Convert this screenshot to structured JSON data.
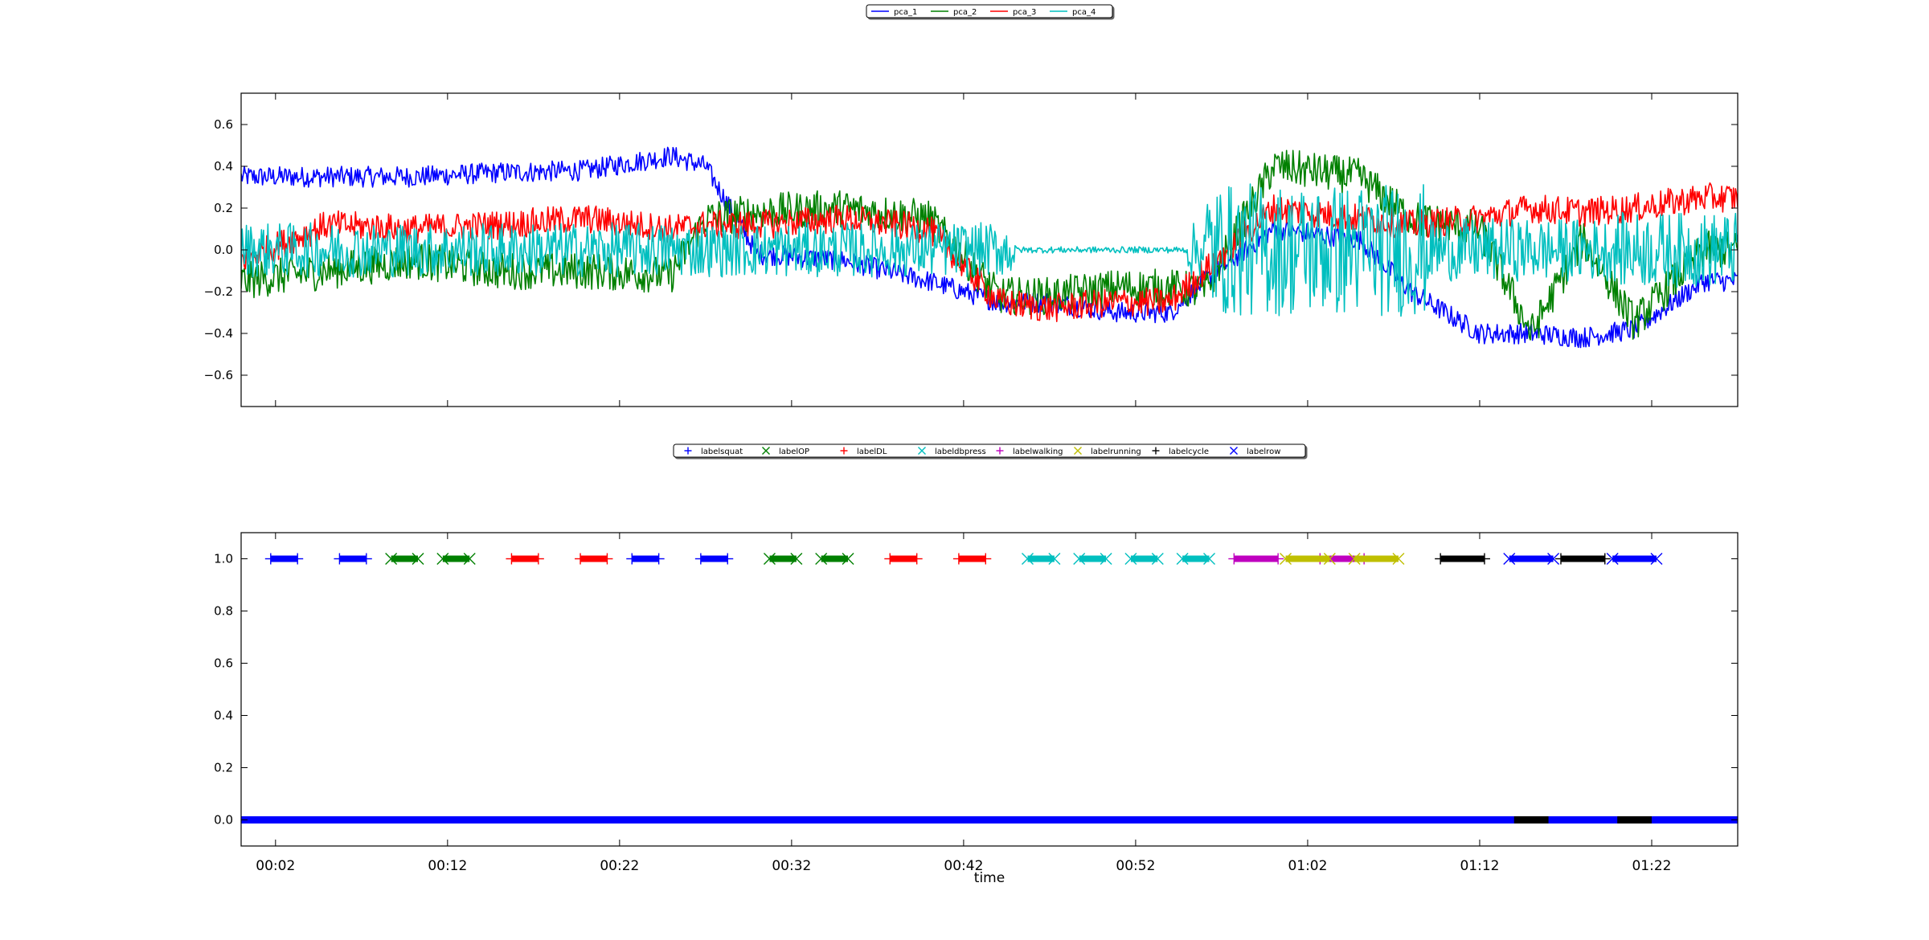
{
  "chart_data": [
    {
      "type": "line",
      "title": "",
      "xlabel": "",
      "ylabel": "",
      "xlim": [
        "00:00",
        "01:27"
      ],
      "ylim": [
        -0.75,
        0.75
      ],
      "yticks": [
        0.6,
        0.4,
        0.2,
        0.0,
        -0.2,
        -0.4,
        -0.6
      ],
      "ytick_labels": [
        "0.6",
        "0.4",
        "0.2",
        "0.0",
        "−0.2",
        "−0.4",
        "−0.6"
      ],
      "xticks": [
        "00:02",
        "00:12",
        "00:22",
        "00:32",
        "00:42",
        "00:52",
        "01:02",
        "01:12",
        "01:22"
      ],
      "grid": false,
      "legend": {
        "placement": "top-center, above plot"
      },
      "series": [
        {
          "name": "pca_1",
          "color": "#0000ff",
          "x": [
            "00:00",
            "00:05",
            "00:10",
            "00:15",
            "00:20",
            "00:25",
            "00:27",
            "00:30",
            "00:35",
            "00:40",
            "00:44",
            "00:47",
            "00:51",
            "00:54",
            "00:56",
            "01:00",
            "01:05",
            "01:08",
            "01:12",
            "01:15",
            "01:18",
            "01:21",
            "01:25",
            "01:27"
          ],
          "values": [
            0.35,
            0.35,
            0.35,
            0.37,
            0.38,
            0.45,
            0.4,
            -0.02,
            -0.05,
            -0.15,
            -0.25,
            -0.25,
            -0.3,
            -0.3,
            -0.15,
            0.1,
            0.05,
            -0.2,
            -0.4,
            -0.4,
            -0.42,
            -0.38,
            -0.15,
            -0.15
          ]
        },
        {
          "name": "pca_2",
          "color": "#008000",
          "x": [
            "00:00",
            "00:05",
            "00:10",
            "00:15",
            "00:20",
            "00:25",
            "00:27",
            "00:30",
            "00:35",
            "00:40",
            "00:44",
            "00:47",
            "00:51",
            "00:54",
            "00:56",
            "01:00",
            "01:05",
            "01:08",
            "01:12",
            "01:15",
            "01:18",
            "01:21",
            "01:25",
            "01:27"
          ],
          "values": [
            -0.15,
            -0.1,
            -0.05,
            -0.1,
            -0.1,
            -0.12,
            0.15,
            0.18,
            0.2,
            0.15,
            -0.22,
            -0.22,
            -0.18,
            -0.18,
            -0.2,
            0.4,
            0.35,
            0.15,
            0.1,
            -0.4,
            0.05,
            -0.35,
            0.0,
            0.0
          ]
        },
        {
          "name": "pca_3",
          "color": "#ff0000",
          "x": [
            "00:00",
            "00:05",
            "00:10",
            "00:15",
            "00:20",
            "00:25",
            "00:27",
            "00:30",
            "00:35",
            "00:40",
            "00:44",
            "00:47",
            "00:51",
            "00:54",
            "00:56",
            "01:00",
            "01:05",
            "01:08",
            "01:12",
            "01:15",
            "01:18",
            "01:21",
            "01:25",
            "01:27"
          ],
          "values": [
            -0.05,
            0.12,
            0.1,
            0.12,
            0.15,
            0.1,
            0.12,
            0.12,
            0.15,
            0.1,
            -0.25,
            -0.28,
            -0.25,
            -0.25,
            -0.1,
            0.2,
            0.15,
            0.12,
            0.15,
            0.2,
            0.18,
            0.2,
            0.25,
            0.25
          ]
        },
        {
          "name": "pca_4",
          "color": "#00bfbf",
          "x": [
            "00:00",
            "00:05",
            "00:10",
            "00:15",
            "00:20",
            "00:25",
            "00:27",
            "00:30",
            "00:35",
            "00:40",
            "00:44",
            "00:47",
            "00:51",
            "00:54",
            "00:56",
            "01:00",
            "01:05",
            "01:08",
            "01:12",
            "01:15",
            "01:18",
            "01:21",
            "01:25",
            "01:27"
          ],
          "values": [
            0.0,
            0.0,
            0.0,
            0.0,
            0.0,
            0.0,
            0.0,
            0.0,
            0.0,
            0.0,
            0.0,
            0.0,
            0.0,
            0.0,
            0.0,
            0.0,
            0.0,
            0.0,
            0.0,
            0.0,
            0.0,
            0.0,
            0.0,
            0.0
          ]
        }
      ]
    },
    {
      "type": "scatter",
      "title": "",
      "xlabel": "time",
      "ylabel": "",
      "xlim": [
        "00:00",
        "01:27"
      ],
      "ylim": [
        -0.1,
        1.1
      ],
      "yticks": [
        1.0,
        0.8,
        0.6,
        0.4,
        0.2,
        0.0
      ],
      "ytick_labels": [
        "1.0",
        "0.8",
        "0.6",
        "0.4",
        "0.2",
        "0.0"
      ],
      "xticks": [
        "00:02",
        "00:12",
        "00:22",
        "00:32",
        "00:42",
        "00:52",
        "01:02",
        "01:12",
        "01:22"
      ],
      "grid": false,
      "legend": {
        "placement": "top-center, above plot"
      },
      "series": [
        {
          "name": "labelsquat",
          "color": "#0000ff",
          "marker": "+",
          "segments": [
            [
              "00:02",
              "00:03"
            ],
            [
              "00:06",
              "00:07"
            ],
            [
              "00:23",
              "00:24"
            ],
            [
              "00:27",
              "00:28"
            ]
          ]
        },
        {
          "name": "labelOP",
          "color": "#008000",
          "marker": "x",
          "segments": [
            [
              "00:09",
              "00:10"
            ],
            [
              "00:12",
              "00:13"
            ],
            [
              "00:31",
              "00:32"
            ],
            [
              "00:34",
              "00:35"
            ]
          ]
        },
        {
          "name": "labelDL",
          "color": "#ff0000",
          "marker": "+",
          "segments": [
            [
              "00:16",
              "00:17"
            ],
            [
              "00:20",
              "00:21"
            ],
            [
              "00:38",
              "00:39"
            ],
            [
              "00:42",
              "00:43"
            ]
          ]
        },
        {
          "name": "labeldbpress",
          "color": "#00bfbf",
          "marker": "x",
          "segments": [
            [
              "00:46",
              "00:47"
            ],
            [
              "00:49",
              "00:50"
            ],
            [
              "00:52",
              "00:53"
            ],
            [
              "00:55",
              "00:56"
            ]
          ]
        },
        {
          "name": "labelwalking",
          "color": "#bf00bf",
          "marker": "+",
          "segments": [
            [
              "00:58",
              "01:00"
            ],
            [
              "01:03",
              "01:05"
            ]
          ]
        },
        {
          "name": "labelrunning",
          "color": "#bfbf00",
          "marker": "x",
          "segments": [
            [
              "01:01",
              "01:03"
            ],
            [
              "01:05",
              "01:07"
            ]
          ]
        },
        {
          "name": "labelcycle",
          "color": "#000000",
          "marker": "+",
          "segments": [
            [
              "01:10",
              "01:12"
            ],
            [
              "01:17",
              "01:19"
            ]
          ]
        },
        {
          "name": "labelrow",
          "color": "#0000ff",
          "marker": "x",
          "segments": [
            [
              "01:14",
              "01:16"
            ],
            [
              "01:20",
              "01:22"
            ]
          ]
        }
      ],
      "zero_baseline": {
        "color": "#0000ff",
        "value": 0.0,
        "overlay_color": "#000000",
        "overlay_segments": [
          [
            "01:14",
            "01:16"
          ],
          [
            "01:20",
            "01:22"
          ]
        ]
      }
    }
  ]
}
